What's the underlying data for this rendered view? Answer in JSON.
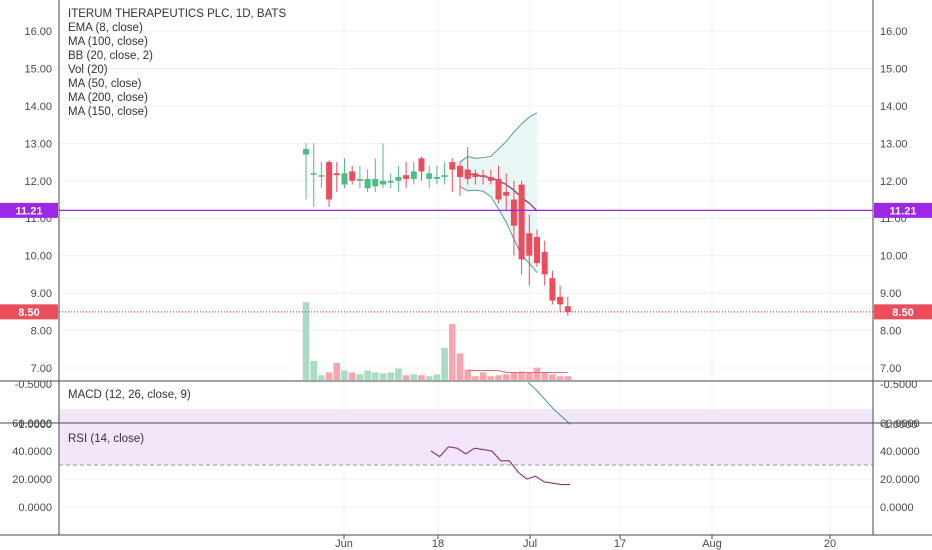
{
  "header": {
    "title": "ITERUM THERAPEUTICS PLC, 1D, BATS",
    "indicators": [
      "EMA (8, close)",
      "MA (100, close)",
      "BB (20, close, 2)",
      "Vol (20)",
      "MA (50, close)",
      "MA (200, close)",
      "MA (150, close)"
    ]
  },
  "colors": {
    "up": "#53b987",
    "down": "#eb4d5c",
    "up_vol": "#a9dcc3",
    "down_vol": "#f5a6ae",
    "bb": "#4a9c9c",
    "ma": "#8a2f5e",
    "macd": "#3c9a9a",
    "rsi_line": "#8a2f6e",
    "rsi_band": "#f3e6fb",
    "price_line": "#d5202e",
    "purple_line": "#9c27e6",
    "grid": "#eef0f3",
    "axis": "#4a4a4a"
  },
  "chart_data": {
    "type": "candlestick",
    "price_axis": {
      "ticks": [
        "16.00",
        "15.00",
        "14.00",
        "13.00",
        "12.00",
        "11.00",
        "10.00",
        "9.00",
        "8.00",
        "7.00"
      ],
      "ylim": [
        6.6,
        16.6
      ]
    },
    "x_axis": {
      "ticks": [
        "Jun",
        "18",
        "Jul",
        "17",
        "Aug",
        "20"
      ]
    },
    "candles": [
      {
        "date": "2018-05-25",
        "open": 12.7,
        "high": 13.0,
        "low": 11.5,
        "close": 12.85
      },
      {
        "date": "2018-05-29",
        "open": 12.2,
        "high": 13.0,
        "low": 11.3,
        "close": 12.2
      },
      {
        "date": "2018-05-30",
        "open": 12.15,
        "high": 12.5,
        "low": 11.8,
        "close": 12.15
      },
      {
        "date": "2018-05-31",
        "open": 12.5,
        "high": 12.55,
        "low": 11.3,
        "close": 11.5
      },
      {
        "date": "2018-06-01",
        "open": 12.2,
        "high": 12.5,
        "low": 11.7,
        "close": 12.15
      },
      {
        "date": "2018-06-04",
        "open": 11.9,
        "high": 12.6,
        "low": 11.8,
        "close": 12.2
      },
      {
        "date": "2018-06-05",
        "open": 12.25,
        "high": 12.4,
        "low": 11.9,
        "close": 12.0
      },
      {
        "date": "2018-06-06",
        "open": 12.0,
        "high": 12.4,
        "low": 11.8,
        "close": 12.05
      },
      {
        "date": "2018-06-07",
        "open": 11.8,
        "high": 12.3,
        "low": 11.7,
        "close": 12.05
      },
      {
        "date": "2018-06-08",
        "open": 11.85,
        "high": 12.6,
        "low": 11.7,
        "close": 12.05
      },
      {
        "date": "2018-06-11",
        "open": 11.9,
        "high": 13.0,
        "low": 11.8,
        "close": 12.0
      },
      {
        "date": "2018-06-12",
        "open": 11.95,
        "high": 12.2,
        "low": 11.8,
        "close": 12.0
      },
      {
        "date": "2018-06-13",
        "open": 12.0,
        "high": 12.4,
        "low": 11.7,
        "close": 12.1
      },
      {
        "date": "2018-06-14",
        "open": 12.15,
        "high": 12.5,
        "low": 11.8,
        "close": 12.05
      },
      {
        "date": "2018-06-15",
        "open": 12.05,
        "high": 12.5,
        "low": 11.9,
        "close": 12.25
      },
      {
        "date": "2018-06-18",
        "open": 12.6,
        "high": 12.65,
        "low": 12.0,
        "close": 12.25
      },
      {
        "date": "2018-06-19",
        "open": 12.05,
        "high": 12.4,
        "low": 11.8,
        "close": 12.2
      },
      {
        "date": "2018-06-20",
        "open": 12.05,
        "high": 12.4,
        "low": 11.9,
        "close": 12.1
      },
      {
        "date": "2018-06-21",
        "open": 12.1,
        "high": 12.5,
        "low": 11.9,
        "close": 12.15
      },
      {
        "date": "2018-06-22",
        "open": 12.5,
        "high": 12.6,
        "low": 11.7,
        "close": 12.3
      },
      {
        "date": "2018-06-25",
        "open": 12.4,
        "high": 12.5,
        "low": 11.6,
        "close": 12.1
      },
      {
        "date": "2018-06-26",
        "open": 12.3,
        "high": 12.9,
        "low": 11.9,
        "close": 12.05
      },
      {
        "date": "2018-06-27",
        "open": 12.2,
        "high": 12.3,
        "low": 11.9,
        "close": 12.1
      },
      {
        "date": "2018-06-28",
        "open": 12.15,
        "high": 12.3,
        "low": 11.9,
        "close": 12.1
      },
      {
        "date": "2018-06-29",
        "open": 12.1,
        "high": 12.3,
        "low": 11.9,
        "close": 12.0
      },
      {
        "date": "2018-07-02",
        "open": 12.05,
        "high": 12.4,
        "low": 11.4,
        "close": 11.5
      },
      {
        "date": "2018-07-03",
        "open": 11.7,
        "high": 12.2,
        "low": 11.2,
        "close": 11.6
      },
      {
        "date": "2018-07-05",
        "open": 11.5,
        "high": 12.0,
        "low": 10.0,
        "close": 10.8
      },
      {
        "date": "2018-07-06",
        "open": 11.9,
        "high": 12.0,
        "low": 9.5,
        "close": 9.9
      },
      {
        "date": "2018-07-09",
        "open": 10.6,
        "high": 11.1,
        "low": 9.2,
        "close": 10.0
      },
      {
        "date": "2018-07-10",
        "open": 10.5,
        "high": 10.7,
        "low": 9.7,
        "close": 9.8
      },
      {
        "date": "2018-07-11",
        "open": 10.1,
        "high": 10.4,
        "low": 9.2,
        "close": 9.5
      },
      {
        "date": "2018-07-12",
        "open": 9.4,
        "high": 9.6,
        "low": 8.7,
        "close": 8.8
      },
      {
        "date": "2018-07-13",
        "open": 8.9,
        "high": 9.2,
        "low": 8.5,
        "close": 8.7
      },
      {
        "date": "2018-07-16",
        "open": 8.65,
        "high": 8.9,
        "low": 8.4,
        "close": 8.5
      }
    ],
    "volume_rel": [
      0.82,
      0.2,
      0.05,
      0.08,
      0.18,
      0.1,
      0.08,
      0.06,
      0.1,
      0.08,
      0.07,
      0.08,
      0.12,
      0.05,
      0.06,
      0.05,
      0.04,
      0.06,
      0.34,
      0.59,
      0.28,
      0.11,
      0.04,
      0.08,
      0.04,
      0.05,
      0.06,
      0.08,
      0.09,
      0.08,
      0.13,
      0.08,
      0.06,
      0.04,
      0.04
    ],
    "bb_upper": [
      null,
      null,
      null,
      null,
      null,
      null,
      null,
      null,
      null,
      null,
      null,
      null,
      null,
      null,
      null,
      null,
      null,
      null,
      null,
      null,
      12.5,
      12.65,
      12.6,
      12.62,
      12.65,
      12.85,
      13.05,
      13.3,
      13.52,
      13.7,
      13.82
    ],
    "bb_lower": [
      null,
      null,
      null,
      null,
      null,
      null,
      null,
      null,
      null,
      null,
      null,
      null,
      null,
      null,
      null,
      null,
      null,
      null,
      null,
      null,
      11.85,
      11.73,
      11.75,
      11.72,
      11.58,
      11.25,
      10.9,
      10.45,
      10.0,
      9.8,
      9.55
    ],
    "ma_line": [
      null,
      null,
      null,
      null,
      null,
      null,
      null,
      null,
      null,
      null,
      null,
      null,
      null,
      null,
      null,
      null,
      null,
      null,
      null,
      null,
      null,
      12.2,
      12.15,
      12.12,
      12.08,
      12.0,
      11.9,
      11.75,
      11.55,
      11.4,
      11.2
    ],
    "last_price": 8.5,
    "horizontal_line": 11.21,
    "macd": {
      "label": "MACD (12, 26, close, 9)",
      "axis_labels": [
        "-0.5000",
        "-1.0000"
      ],
      "values": [
        -0.48,
        -0.58,
        -0.7,
        -0.82,
        -0.92,
        -1.02
      ]
    },
    "rsi": {
      "label": "RSI (14, close)",
      "axis_labels": [
        "60.0000",
        "40.0000",
        "20.0000",
        "0.0000"
      ],
      "band": [
        30,
        70
      ],
      "values": [
        40,
        36,
        43,
        42,
        38,
        42,
        41,
        40,
        33,
        33,
        25,
        20,
        22,
        18,
        17,
        16,
        16
      ]
    }
  }
}
